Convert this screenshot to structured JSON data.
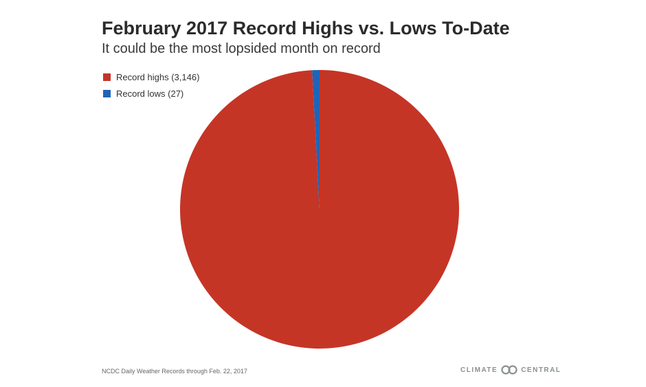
{
  "chart_data": {
    "type": "pie",
    "title": "February 2017 Record Highs vs. Lows To-Date",
    "subtitle": "It could be the most lopsided month on record",
    "slices": [
      {
        "label": "Record highs (3,146)",
        "value": 3146,
        "color": "#c53526"
      },
      {
        "label": "Record lows (27)",
        "value": 27,
        "color": "#1f64b8"
      }
    ],
    "legend_position": "top-left"
  },
  "footer": {
    "source": "NCDC Daily Weather Records through Feb. 22, 2017",
    "logo_left": "CLIMATE",
    "logo_right": "CENTRAL"
  }
}
